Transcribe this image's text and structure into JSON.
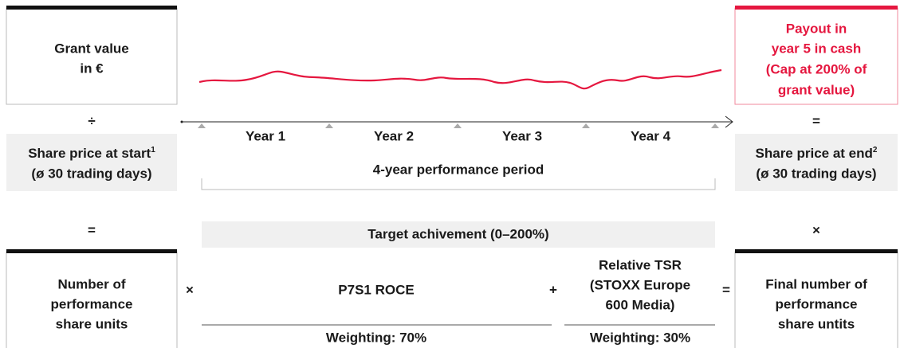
{
  "left": {
    "grant": [
      "Grant value",
      "in €"
    ],
    "op1": "÷",
    "share_price": {
      "text": "Share price at start",
      "note": "1",
      "sub": "(ø 30 trading days)"
    },
    "op2": "=",
    "units": [
      "Number of",
      "performance",
      "share units"
    ]
  },
  "middle": {
    "years": [
      "Year 1",
      "Year 2",
      "Year 3",
      "Year 4"
    ],
    "period": "4-year performance period",
    "target": "Target achivement (0–200%)",
    "op_left": "×",
    "roce": "P7S1 ROCE",
    "plus": "+",
    "tsr": [
      "Relative TSR",
      "(STOXX Europe",
      "600 Media)"
    ],
    "op_right": "=",
    "weights": [
      "Weighting: 70%",
      "Weighting: 30%"
    ]
  },
  "right": {
    "payout": [
      "Payout in",
      "year 5 in cash",
      "(Cap at 200% of",
      "grant value)"
    ],
    "op1": "=",
    "share_price": {
      "text": "Share price at end",
      "note": "2",
      "sub": "(ø 30 trading days)"
    },
    "op2": "×",
    "units": [
      "Final number of",
      "performance",
      "share untits"
    ]
  }
}
